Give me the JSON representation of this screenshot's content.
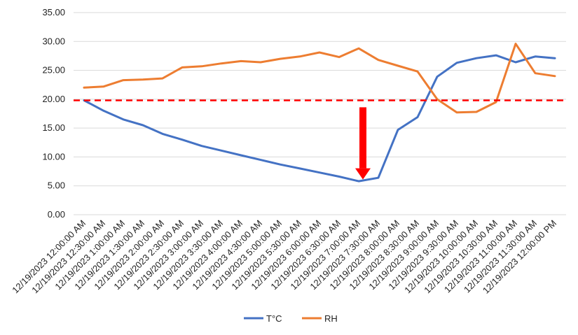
{
  "chart_data": {
    "type": "line",
    "categories": [
      "12/19/2023 12:00:00 AM",
      "12/19/2023 12:30:00 AM",
      "12/19/2023 1:00:00 AM",
      "12/19/2023 1:30:00 AM",
      "12/19/2023 2:00:00 AM",
      "12/19/2023 2:30:00 AM",
      "12/19/2023 3:00:00 AM",
      "12/19/2023 3:30:00 AM",
      "12/19/2023 4:00:00 AM",
      "12/19/2023 4:30:00 AM",
      "12/19/2023 5:00:00 AM",
      "12/19/2023 5:30:00 AM",
      "12/19/2023 6:00:00 AM",
      "12/19/2023 6:30:00 AM",
      "12/19/2023 7:00:00 AM",
      "12/19/2023 7:30:00 AM",
      "12/19/2023 8:00:00 AM",
      "12/19/2023 8:30:00 AM",
      "12/19/2023 9:00:00 AM",
      "12/19/2023 9:30:00 AM",
      "12/19/2023 10:00:00 AM",
      "12/19/2023 10:30:00 AM",
      "12/19/2023 11:00:00 AM",
      "12/19/2023 11:30:00 AM",
      "12/19/2023 12:00:00 PM"
    ],
    "series": [
      {
        "name": "T°C",
        "color": "#4472C4",
        "values": [
          19.8,
          18.0,
          16.5,
          15.5,
          14.0,
          13.0,
          11.9,
          11.1,
          10.3,
          9.5,
          8.7,
          8.0,
          7.3,
          6.6,
          5.8,
          6.4,
          14.7,
          16.9,
          23.9,
          26.3,
          27.1,
          27.6,
          26.4,
          27.4,
          27.1
        ]
      },
      {
        "name": "RH",
        "color": "#ED7D31",
        "values": [
          22.0,
          22.2,
          23.3,
          23.4,
          23.6,
          25.5,
          25.7,
          26.2,
          26.6,
          26.4,
          27.0,
          27.4,
          28.1,
          27.3,
          28.8,
          26.8,
          25.8,
          24.8,
          20.0,
          17.7,
          17.8,
          19.5,
          29.6,
          24.5,
          24.0
        ]
      }
    ],
    "yticks": [
      "0.00",
      "5.00",
      "10.00",
      "15.00",
      "20.00",
      "25.00",
      "30.00",
      "35.00"
    ],
    "ylim": [
      0,
      35
    ],
    "grid": true,
    "legend_position": "bottom",
    "annotations": {
      "reference_line": {
        "y": 19.8,
        "color": "#FF0000",
        "style": "dashed"
      },
      "arrow": {
        "category_index": 14,
        "from_y": 18.6,
        "to_y": 6.1,
        "color": "#FF0000"
      }
    }
  }
}
